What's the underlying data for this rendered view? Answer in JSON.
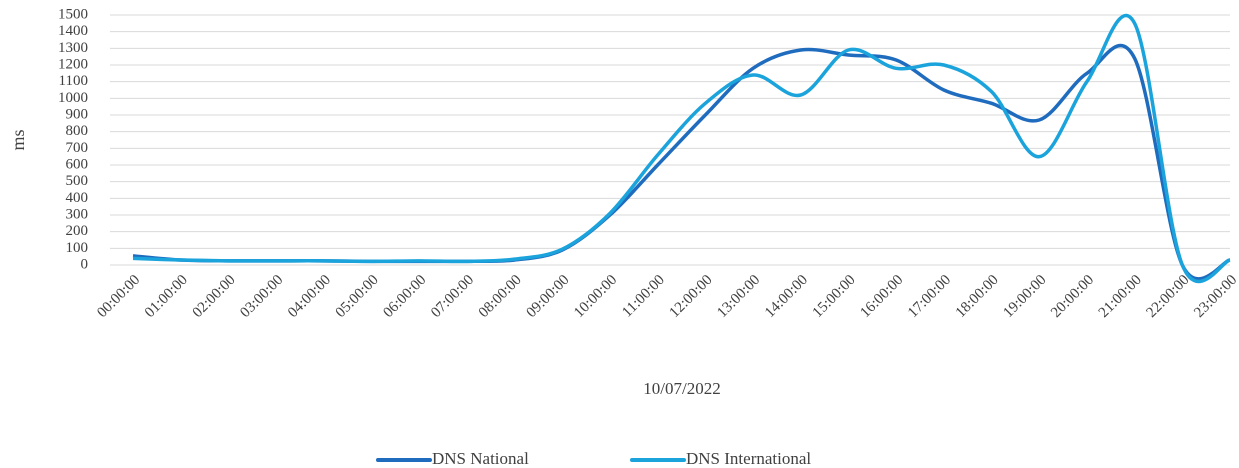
{
  "chart_data": {
    "type": "line",
    "x_label": "10/07/2022",
    "y_label": "ms",
    "categories": [
      "00:00:00",
      "01:00:00",
      "02:00:00",
      "03:00:00",
      "04:00:00",
      "05:00:00",
      "06:00:00",
      "07:00:00",
      "08:00:00",
      "09:00:00",
      "10:00:00",
      "11:00:00",
      "12:00:00",
      "13:00:00",
      "14:00:00",
      "15:00:00",
      "16:00:00",
      "17:00:00",
      "18:00:00",
      "19:00:00",
      "20:00:00",
      "21:00:00",
      "22:00:00",
      "23:00:00"
    ],
    "series": [
      {
        "name": "DNS National",
        "color": "#1f6cbf",
        "values": [
          55,
          30,
          25,
          25,
          25,
          22,
          22,
          22,
          30,
          90,
          300,
          600,
          900,
          1180,
          1290,
          1260,
          1230,
          1050,
          970,
          870,
          1150,
          1240,
          0,
          30
        ]
      },
      {
        "name": "DNS International",
        "color": "#1ba3dc",
        "values": [
          40,
          30,
          25,
          25,
          25,
          22,
          25,
          22,
          35,
          95,
          310,
          660,
          970,
          1140,
          1020,
          1290,
          1180,
          1200,
          1040,
          650,
          1100,
          1450,
          0,
          30
        ]
      }
    ],
    "ylim": [
      0,
      1500
    ],
    "yticks": [
      0,
      100,
      200,
      300,
      400,
      500,
      600,
      700,
      800,
      900,
      1000,
      1100,
      1200,
      1300,
      1400,
      1500
    ],
    "grid": true,
    "legend": "bottom"
  }
}
